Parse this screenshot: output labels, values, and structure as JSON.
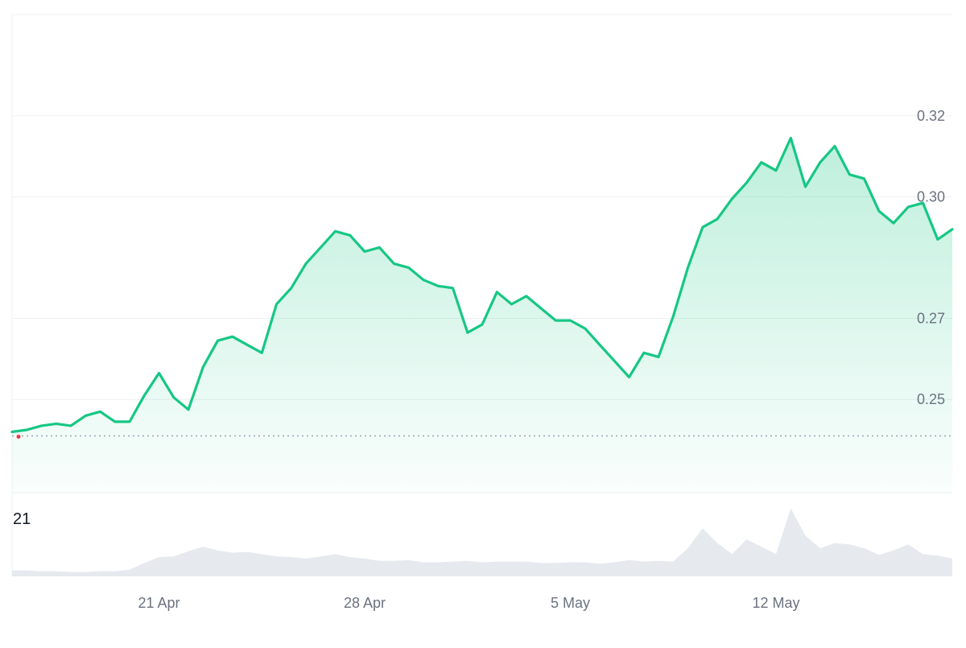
{
  "colors": {
    "line": "#16c784",
    "start_marker": "#ea3943",
    "area_top": "#16c784",
    "grid": "#eef0f3",
    "volume_fill": "#e6e9ee",
    "axis_text": "#6b7280",
    "baseline": "#9ca3af"
  },
  "chart_data": {
    "type": "line",
    "title": "",
    "xlabel": "",
    "ylabel": "",
    "grid": true,
    "x_domain": [
      "2024-04-16",
      "2024-05-18"
    ],
    "ylim": [
      0.227,
      0.345
    ],
    "yticks": [
      {
        "value": 0.25,
        "label": "0.25"
      },
      {
        "value": 0.27,
        "label": "0.27"
      },
      {
        "value": 0.3,
        "label": "0.30"
      },
      {
        "value": 0.32,
        "label": "0.32"
      }
    ],
    "xticks": [
      {
        "x": "2024-04-21",
        "label": "21 Apr"
      },
      {
        "x": "2024-04-28",
        "label": "28 Apr"
      },
      {
        "x": "2024-05-05",
        "label": "5 May"
      },
      {
        "x": "2024-05-12",
        "label": "12 May"
      }
    ],
    "baseline_value": 0.241,
    "series": [
      {
        "x": [
          "2024-04-16",
          "2024-04-16T12:00",
          "2024-04-17",
          "2024-04-17T12:00",
          "2024-04-18",
          "2024-04-18T12:00",
          "2024-04-19",
          "2024-04-19T12:00",
          "2024-04-20",
          "2024-04-20T12:00",
          "2024-04-21",
          "2024-04-21T12:00",
          "2024-04-22",
          "2024-04-22T12:00",
          "2024-04-23",
          "2024-04-23T12:00",
          "2024-04-24",
          "2024-04-24T12:00",
          "2024-04-25",
          "2024-04-25T12:00",
          "2024-04-26",
          "2024-04-26T12:00",
          "2024-04-27",
          "2024-04-27T12:00",
          "2024-04-28",
          "2024-04-28T12:00",
          "2024-04-29",
          "2024-04-29T12:00",
          "2024-04-30",
          "2024-04-30T12:00",
          "2024-05-01",
          "2024-05-01T12:00",
          "2024-05-02",
          "2024-05-02T12:00",
          "2024-05-03",
          "2024-05-03T12:00",
          "2024-05-04",
          "2024-05-04T12:00",
          "2024-05-05",
          "2024-05-05T12:00",
          "2024-05-06",
          "2024-05-06T12:00",
          "2024-05-07",
          "2024-05-07T12:00",
          "2024-05-08",
          "2024-05-08T12:00",
          "2024-05-09",
          "2024-05-09T12:00",
          "2024-05-10",
          "2024-05-10T12:00",
          "2024-05-11",
          "2024-05-11T12:00",
          "2024-05-12",
          "2024-05-12T12:00",
          "2024-05-13",
          "2024-05-13T12:00",
          "2024-05-14",
          "2024-05-14T12:00",
          "2024-05-15",
          "2024-05-15T12:00",
          "2024-05-16",
          "2024-05-16T12:00",
          "2024-05-17",
          "2024-05-17T12:00",
          "2024-05-18"
        ],
        "values": [
          0.242,
          0.2425,
          0.2435,
          0.244,
          0.2435,
          0.246,
          0.247,
          0.2445,
          0.2445,
          0.251,
          0.2565,
          0.2505,
          0.2475,
          0.258,
          0.2645,
          0.2655,
          0.2635,
          0.2615,
          0.2735,
          0.2775,
          0.2835,
          0.2875,
          0.2915,
          0.2905,
          0.2865,
          0.2875,
          0.2835,
          0.2825,
          0.2795,
          0.278,
          0.2775,
          0.2665,
          0.2685,
          0.2765,
          0.2735,
          0.2755,
          0.2725,
          0.2695,
          0.2695,
          0.2675,
          0.2635,
          0.2595,
          0.2555,
          0.2615,
          0.2605,
          0.2705,
          0.2825,
          0.2925,
          0.2945,
          0.2995,
          0.3035,
          0.3085,
          0.3065,
          0.3145,
          0.3025,
          0.3085,
          0.3125,
          0.3055,
          0.3045,
          0.2965,
          0.2935,
          0.2975,
          0.2985,
          0.2895,
          0.292
        ]
      }
    ],
    "volume": {
      "label": "21",
      "values": [
        0.08,
        0.08,
        0.07,
        0.07,
        0.06,
        0.06,
        0.07,
        0.07,
        0.09,
        0.18,
        0.26,
        0.27,
        0.34,
        0.4,
        0.35,
        0.32,
        0.33,
        0.3,
        0.27,
        0.26,
        0.24,
        0.27,
        0.3,
        0.26,
        0.24,
        0.21,
        0.21,
        0.22,
        0.19,
        0.19,
        0.2,
        0.21,
        0.19,
        0.2,
        0.2,
        0.2,
        0.18,
        0.18,
        0.19,
        0.19,
        0.17,
        0.19,
        0.22,
        0.2,
        0.21,
        0.2,
        0.38,
        0.65,
        0.45,
        0.3,
        0.5,
        0.4,
        0.3,
        0.92,
        0.55,
        0.38,
        0.45,
        0.43,
        0.38,
        0.29,
        0.35,
        0.43,
        0.3,
        0.28,
        0.24
      ]
    }
  }
}
